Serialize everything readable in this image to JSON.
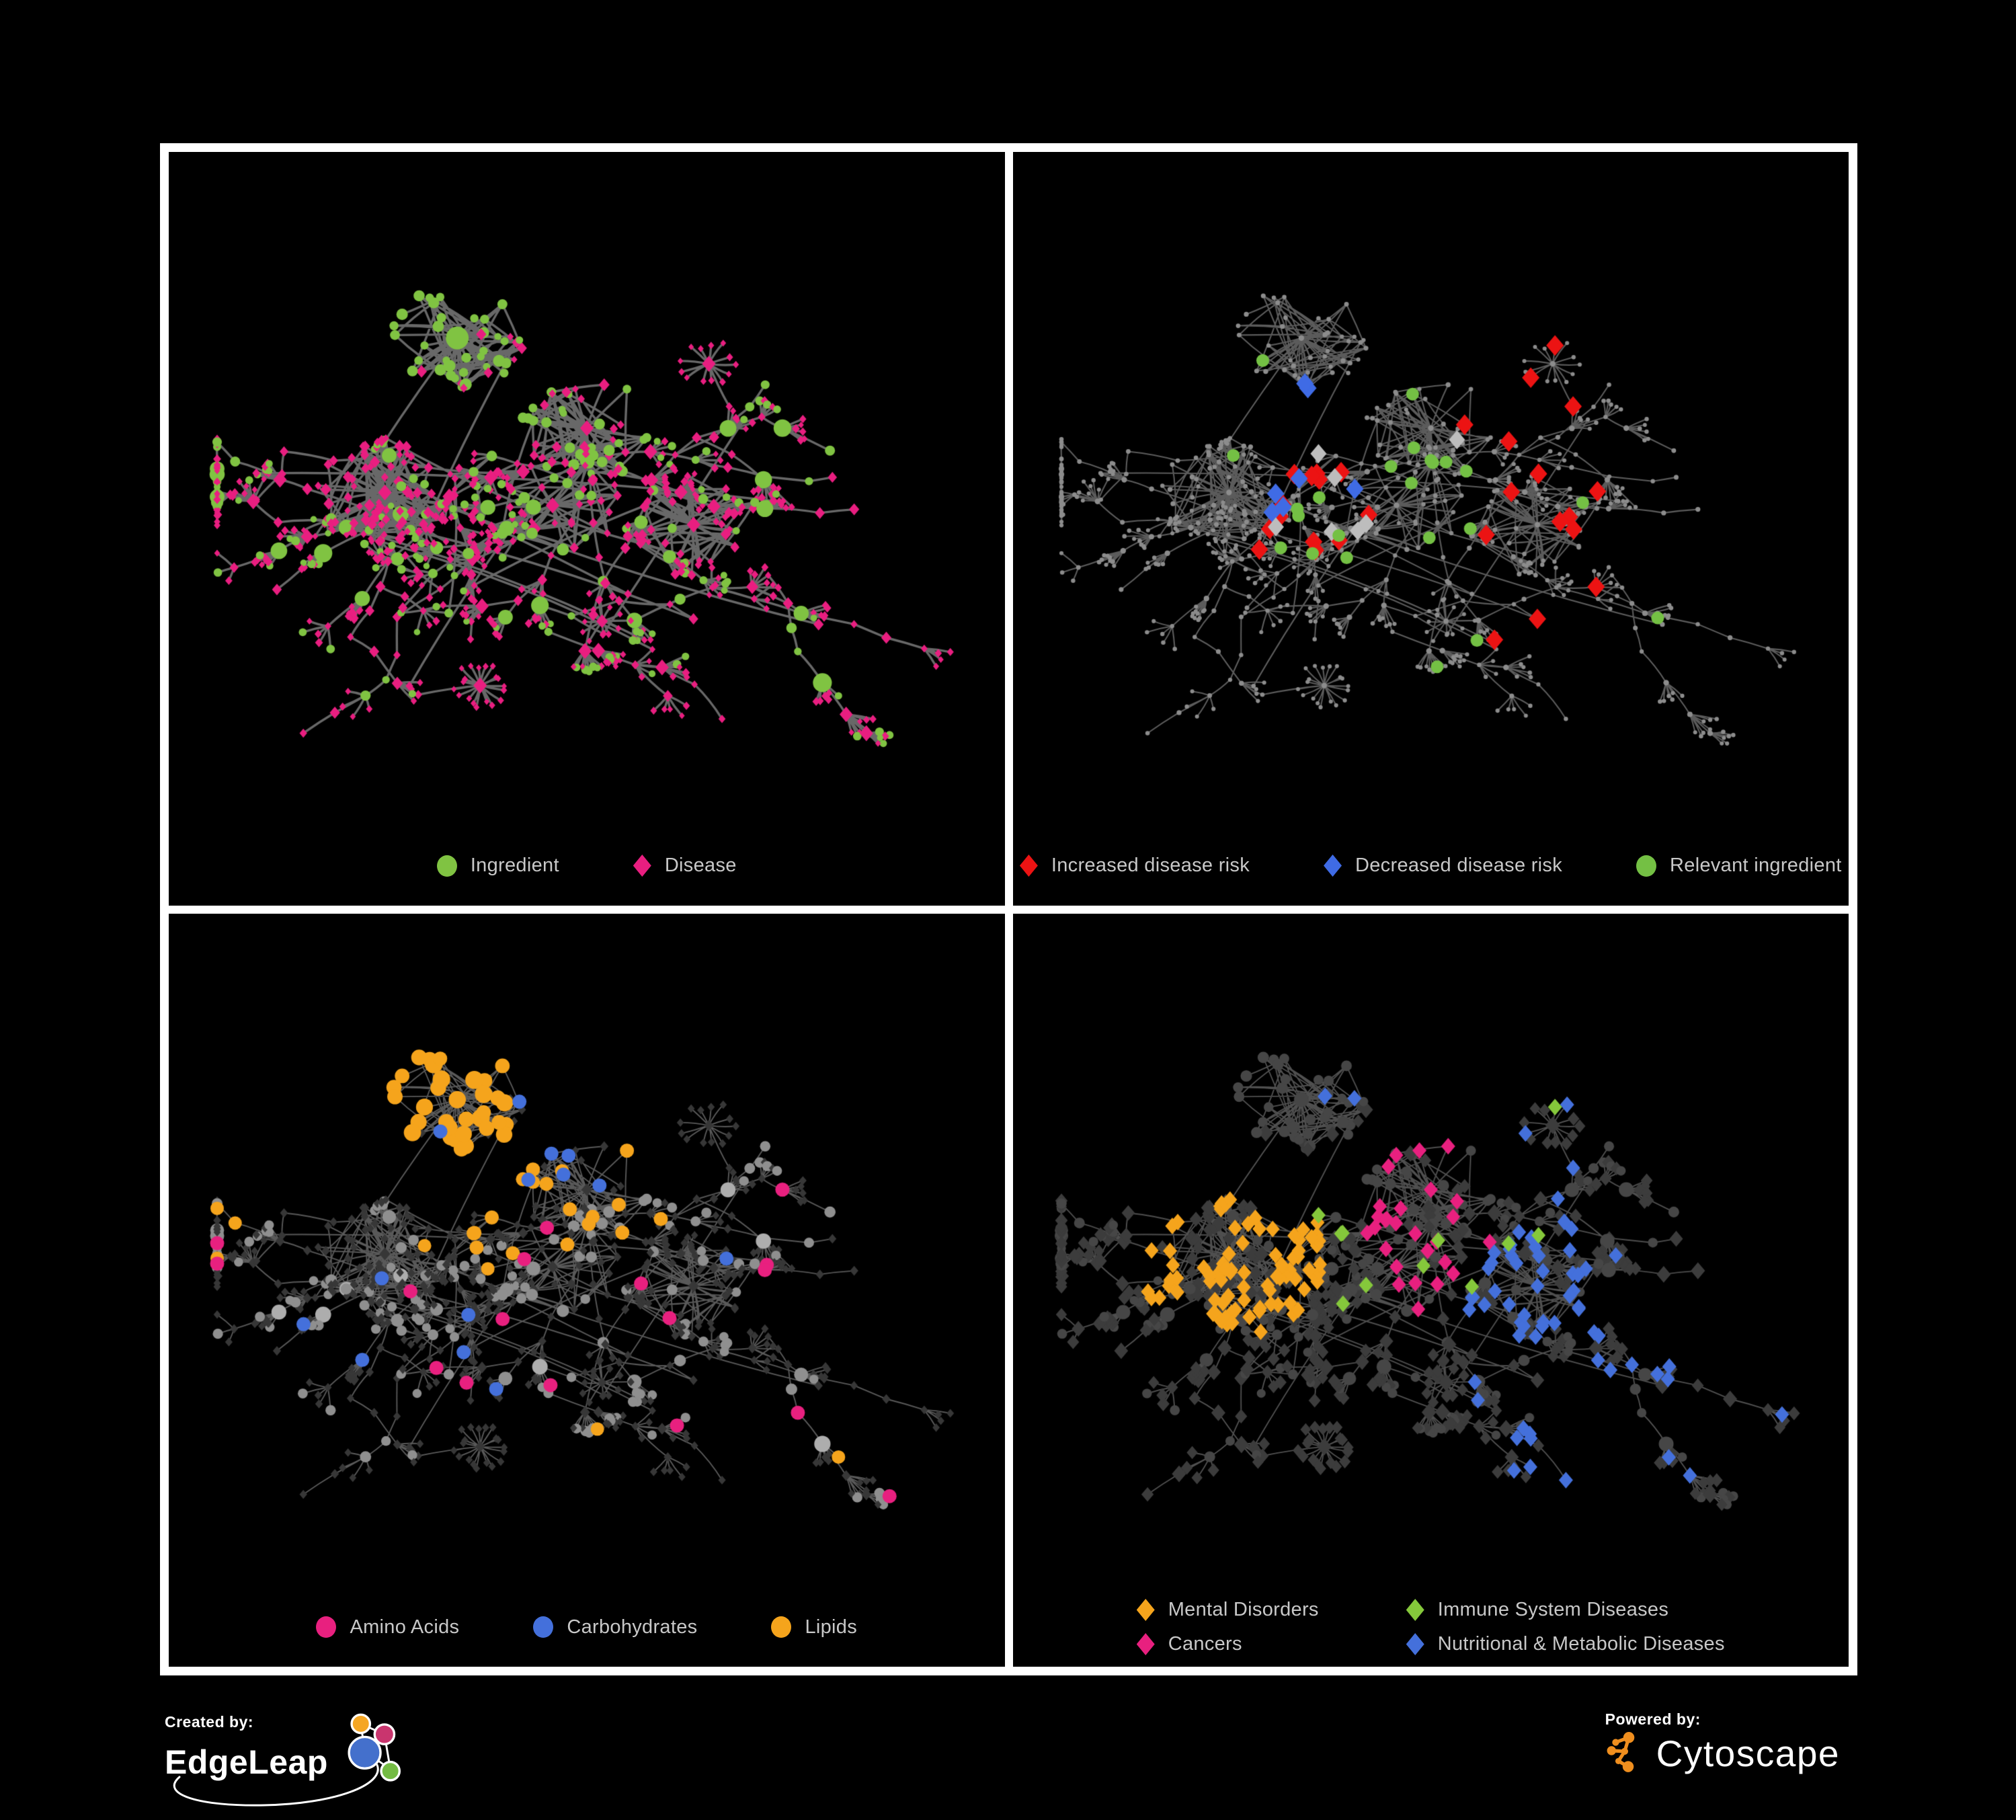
{
  "figure": {
    "background": "#000000",
    "frame_color": "#ffffff"
  },
  "panels": [
    {
      "id": "ingredient-disease",
      "legend": [
        {
          "shape": "circle",
          "color": "#80C342",
          "label": "Ingredient"
        },
        {
          "shape": "diamond",
          "color": "#E91E80",
          "label": "Disease"
        }
      ]
    },
    {
      "id": "disease-risk",
      "legend": [
        {
          "shape": "diamond",
          "color": "#EC1313",
          "label": "Increased disease risk"
        },
        {
          "shape": "diamond",
          "color": "#3F6BE5",
          "label": "Decreased disease risk"
        },
        {
          "shape": "circle",
          "color": "#74C044",
          "label": "Relevant ingredient"
        }
      ]
    },
    {
      "id": "nutrient-classes",
      "legend": [
        {
          "shape": "circle",
          "color": "#E8207F",
          "label": "Amino Acids"
        },
        {
          "shape": "circle",
          "color": "#4470DB",
          "label": "Carbohydrates"
        },
        {
          "shape": "circle",
          "color": "#F5A41C",
          "label": "Lipids"
        }
      ]
    },
    {
      "id": "disease-classes",
      "legend_columns": 2,
      "legend": [
        {
          "shape": "diamond",
          "color": "#F5A41C",
          "label": "Mental Disorders"
        },
        {
          "shape": "diamond",
          "color": "#85C83B",
          "label": "Immune System Diseases"
        },
        {
          "shape": "diamond",
          "color": "#E8207F",
          "label": "Cancers"
        },
        {
          "shape": "diamond",
          "color": "#4470DB",
          "label": "Nutritional & Metabolic Diseases"
        }
      ]
    }
  ],
  "footer": {
    "created_by": "Created by:",
    "brand_left": "EdgeLeap",
    "powered_by": "Powered by:",
    "brand_right": "Cytoscape",
    "edgeleap_colors": {
      "orange": "#F5A623",
      "magenta": "#C9356E",
      "blue": "#4470CC",
      "green": "#74BB43"
    },
    "cytoscape_color": "#EF8E1E"
  },
  "network": {
    "seed": 1337,
    "styles": [
      {
        "mode": "type",
        "edge": "#6E6E6E",
        "edge_width": 3.4,
        "edge_alpha": 0.95,
        "ingredient": "#80C342",
        "disease": "#E91E80"
      },
      {
        "mode": "dot",
        "edge": "#656565",
        "edge_width": 2.1,
        "edge_alpha": 0.9,
        "dot": "#8C8C8C",
        "highlights": {
          "increased": {
            "color": "#EC1313",
            "count": 29
          },
          "decreased": {
            "color": "#3F6BE5",
            "count": 9
          },
          "neutral": {
            "color": "#BDBDBD",
            "count": 7
          },
          "relevant": {
            "color": "#74C044",
            "count": 23
          }
        }
      },
      {
        "mode": "nutrient",
        "edge": "#A3A3A3",
        "edge_width": 1.9,
        "edge_alpha": 0.55,
        "ingredient": "#8F8F8F",
        "ingredient_hub": "#ADADAD",
        "disease": "#373737",
        "highlights": {
          "lipids": {
            "color": "#F5A41C",
            "count": 58
          },
          "carbohydrates": {
            "color": "#4470DB",
            "count": 15
          },
          "amino_acids": {
            "color": "#E8207F",
            "count": 17
          }
        }
      },
      {
        "mode": "classes",
        "edge": "#9E9E9E",
        "edge_width": 1.9,
        "edge_alpha": 0.5,
        "ingredient": "#464646",
        "disease": "#3C3C3C",
        "highlights": {
          "mental": {
            "color": "#F5A41C",
            "count": 88
          },
          "cancers": {
            "color": "#E8207F",
            "count": 52
          },
          "nutritional": {
            "color": "#4470DB",
            "count": 68
          },
          "immune": {
            "color": "#85C83B",
            "count": 11
          }
        }
      }
    ]
  }
}
